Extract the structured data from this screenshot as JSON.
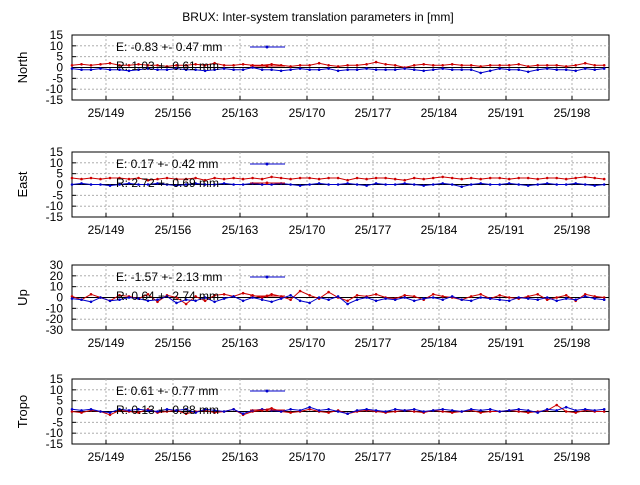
{
  "title": "BRUX: Inter-system translation parameters in [mm]",
  "colors": {
    "E": "#0000cc",
    "R": "#cc0000",
    "grid": "#a0a0a0",
    "axis": "#000000"
  },
  "chart_data": [
    {
      "type": "line",
      "ylabel": "North",
      "ylim": [
        -15,
        15
      ],
      "yticks": [
        -15,
        -10,
        -5,
        0,
        5,
        10,
        15
      ],
      "xticks": [
        "25/149",
        "25/156",
        "25/163",
        "25/170",
        "25/177",
        "25/184",
        "25/191",
        "25/198"
      ],
      "xlim": [
        145,
        201.5
      ],
      "grid": true,
      "legend_position": "top-left",
      "series": [
        {
          "name": "E:  -0.83 +- 0.47 mm",
          "color": "#0000cc",
          "x": [
            145,
            146,
            147,
            148,
            149,
            150,
            151,
            152,
            153,
            154,
            155,
            156,
            157,
            158,
            159,
            160,
            161,
            162,
            163,
            164,
            165,
            166,
            167,
            168,
            169,
            170,
            171,
            172,
            173,
            174,
            175,
            176,
            177,
            178,
            179,
            180,
            181,
            182,
            183,
            184,
            185,
            186,
            187,
            188,
            189,
            190,
            191,
            192,
            193,
            194,
            195,
            196,
            197,
            198,
            199,
            200,
            201
          ],
          "y": [
            -0.5,
            -1,
            -1,
            -0.5,
            -1,
            -1,
            -1.5,
            -1,
            -0.5,
            -1,
            -1,
            -0.5,
            -1,
            -1,
            -1.5,
            -1,
            -0.5,
            -1,
            -1,
            0,
            -1,
            -1,
            -1.5,
            -1,
            -0.5,
            -1,
            -1,
            -0.5,
            -1.5,
            -1,
            -1,
            -0.5,
            -1,
            -1,
            -1,
            -0.5,
            -1,
            -1.5,
            -1,
            -0.5,
            -1,
            -1,
            -1,
            -2.5,
            -1.5,
            -0.5,
            -1,
            -1,
            -2,
            -1,
            -0.5,
            -1,
            -1,
            -1.5,
            -0.5,
            -1,
            -0.5
          ]
        },
        {
          "name": "R:  1.03 +- 0.61 mm",
          "color": "#cc0000",
          "x": [
            145,
            146,
            147,
            148,
            149,
            150,
            151,
            152,
            153,
            154,
            155,
            156,
            157,
            158,
            159,
            160,
            161,
            162,
            163,
            164,
            165,
            166,
            167,
            168,
            169,
            170,
            171,
            172,
            173,
            174,
            175,
            176,
            177,
            178,
            179,
            180,
            181,
            182,
            183,
            184,
            185,
            186,
            187,
            188,
            189,
            190,
            191,
            192,
            193,
            194,
            195,
            196,
            197,
            198,
            199,
            200,
            201
          ],
          "y": [
            1,
            1.5,
            1,
            1.5,
            2,
            1,
            1,
            1.5,
            1,
            1,
            0.5,
            1,
            1,
            1.5,
            1,
            2,
            1,
            1,
            1.5,
            1,
            1,
            1.5,
            1,
            0.5,
            1,
            1,
            2,
            1,
            0.5,
            1,
            1,
            1.5,
            2.5,
            1.5,
            1,
            0,
            1,
            1.5,
            1,
            1,
            1.5,
            1,
            1,
            0.5,
            1,
            1,
            1,
            1.5,
            0.5,
            1,
            1,
            1,
            0.5,
            1,
            2,
            1,
            1
          ]
        }
      ]
    },
    {
      "type": "line",
      "ylabel": "East",
      "ylim": [
        -15,
        15
      ],
      "yticks": [
        -15,
        -10,
        -5,
        0,
        5,
        10,
        15
      ],
      "xticks": [
        "25/149",
        "25/156",
        "25/163",
        "25/170",
        "25/177",
        "25/184",
        "25/191",
        "25/198"
      ],
      "xlim": [
        145,
        201.5
      ],
      "grid": true,
      "legend_position": "top-left",
      "series": [
        {
          "name": "E:  0.17 +- 0.42 mm",
          "color": "#0000cc",
          "x": [
            145,
            146,
            147,
            148,
            149,
            150,
            151,
            152,
            153,
            154,
            155,
            156,
            157,
            158,
            159,
            160,
            161,
            162,
            163,
            164,
            165,
            166,
            167,
            168,
            169,
            170,
            171,
            172,
            173,
            174,
            175,
            176,
            177,
            178,
            179,
            180,
            181,
            182,
            183,
            184,
            185,
            186,
            187,
            188,
            189,
            190,
            191,
            192,
            193,
            194,
            195,
            196,
            197,
            198,
            199,
            200,
            201
          ],
          "y": [
            0,
            0.5,
            0,
            0,
            -0.5,
            0,
            0.5,
            0,
            0,
            0.5,
            0,
            -0.5,
            0,
            0.5,
            0,
            0,
            0.5,
            0,
            0,
            0.5,
            0,
            0,
            0.5,
            0,
            -0.5,
            0,
            0.5,
            0,
            0,
            0.5,
            0,
            -0.5,
            0.5,
            0,
            0,
            0.5,
            0,
            -0.5,
            0,
            0.5,
            0,
            -1,
            0,
            0.5,
            0,
            0,
            0.5,
            0,
            -0.5,
            0,
            0.5,
            0,
            0,
            0.5,
            0,
            -0.5,
            0
          ]
        },
        {
          "name": "R:  2.72 +- 0.69 mm",
          "color": "#cc0000",
          "x": [
            145,
            146,
            147,
            148,
            149,
            150,
            151,
            152,
            153,
            154,
            155,
            156,
            157,
            158,
            159,
            160,
            161,
            162,
            163,
            164,
            165,
            166,
            167,
            168,
            169,
            170,
            171,
            172,
            173,
            174,
            175,
            176,
            177,
            178,
            179,
            180,
            181,
            182,
            183,
            184,
            185,
            186,
            187,
            188,
            189,
            190,
            191,
            192,
            193,
            194,
            195,
            196,
            197,
            198,
            199,
            200,
            201
          ],
          "y": [
            3,
            2.5,
            3,
            2.5,
            3,
            3,
            2.5,
            3,
            2,
            2.5,
            3,
            2.5,
            2.5,
            3,
            2,
            3,
            2.5,
            3,
            2.5,
            3,
            2.5,
            3.5,
            3,
            2.5,
            3,
            3,
            2.5,
            3,
            3,
            2,
            3,
            2.5,
            3,
            3,
            2.5,
            2,
            3,
            2.5,
            3,
            3.5,
            3,
            2.5,
            3,
            2.5,
            3,
            3,
            2.5,
            3,
            3,
            2.5,
            3,
            3,
            2.5,
            3,
            3.5,
            3,
            2.5
          ]
        }
      ]
    },
    {
      "type": "line",
      "ylabel": "Up",
      "ylim": [
        -30,
        30
      ],
      "yticks": [
        -30,
        -20,
        -10,
        0,
        10,
        20,
        30
      ],
      "xticks": [
        "25/149",
        "25/156",
        "25/163",
        "25/170",
        "25/177",
        "25/184",
        "25/191",
        "25/198"
      ],
      "xlim": [
        145,
        201.5
      ],
      "grid": true,
      "legend_position": "top-left",
      "series": [
        {
          "name": "E:  -1.57 +- 2.13 mm",
          "color": "#0000cc",
          "x": [
            145,
            146,
            147,
            148,
            149,
            150,
            151,
            152,
            153,
            154,
            155,
            156,
            157,
            158,
            159,
            160,
            161,
            162,
            163,
            164,
            165,
            166,
            167,
            168,
            169,
            170,
            171,
            172,
            173,
            174,
            175,
            176,
            177,
            178,
            179,
            180,
            181,
            182,
            183,
            184,
            185,
            186,
            187,
            188,
            189,
            190,
            191,
            192,
            193,
            194,
            195,
            196,
            197,
            198,
            199,
            200,
            201
          ],
          "y": [
            -1,
            -2,
            -4,
            0,
            -3,
            -2,
            0,
            -1,
            -3,
            -2,
            1,
            -5,
            -2,
            -3,
            0,
            -4,
            -1,
            1,
            -3,
            0,
            -2,
            -4,
            -1,
            2,
            -3,
            -5,
            0,
            -2,
            1,
            -6,
            -2,
            0,
            -3,
            -1,
            -2,
            0,
            -3,
            -1,
            0,
            -2,
            1,
            -2,
            -3,
            0,
            -1,
            -2,
            -3,
            0,
            -1,
            -2,
            0,
            -3,
            -1,
            -2,
            1,
            -1,
            -2
          ]
        },
        {
          "name": "R:  0.64 +- 2.74 mm",
          "color": "#cc0000",
          "x": [
            145,
            146,
            147,
            148,
            149,
            150,
            151,
            152,
            153,
            154,
            155,
            156,
            157,
            158,
            159,
            160,
            161,
            162,
            163,
            164,
            165,
            166,
            167,
            168,
            169,
            170,
            171,
            172,
            173,
            174,
            175,
            176,
            177,
            178,
            179,
            180,
            181,
            182,
            183,
            184,
            185,
            186,
            187,
            188,
            189,
            190,
            191,
            192,
            193,
            194,
            195,
            196,
            197,
            198,
            199,
            200,
            201
          ],
          "y": [
            1,
            -2,
            3,
            0,
            -3,
            2,
            1,
            -1,
            3,
            -4,
            2,
            0,
            -6,
            1,
            -3,
            2,
            3,
            1,
            4,
            2,
            0,
            3,
            1,
            -2,
            6,
            2,
            -1,
            5,
            0,
            -3,
            2,
            1,
            3,
            0,
            -1,
            2,
            1,
            -2,
            3,
            1,
            0,
            -2,
            1,
            3,
            -1,
            2,
            0,
            -1,
            1,
            3,
            -2,
            0,
            2,
            -3,
            3,
            1,
            0
          ]
        }
      ]
    },
    {
      "type": "line",
      "ylabel": "Tropo",
      "ylim": [
        -15,
        15
      ],
      "yticks": [
        -15,
        -10,
        -5,
        0,
        5,
        10,
        15
      ],
      "xticks": [
        "25/149",
        "25/156",
        "25/163",
        "25/170",
        "25/177",
        "25/184",
        "25/191",
        "25/198"
      ],
      "xlim": [
        145,
        201.5
      ],
      "grid": true,
      "legend_position": "top-left",
      "series": [
        {
          "name": "E:  0.61 +- 0.77 mm",
          "color": "#0000cc",
          "x": [
            145,
            146,
            147,
            148,
            149,
            150,
            151,
            152,
            153,
            154,
            155,
            156,
            157,
            158,
            159,
            160,
            161,
            162,
            163,
            164,
            165,
            166,
            167,
            168,
            169,
            170,
            171,
            172,
            173,
            174,
            175,
            176,
            177,
            178,
            179,
            180,
            181,
            182,
            183,
            184,
            185,
            186,
            187,
            188,
            189,
            190,
            191,
            192,
            193,
            194,
            195,
            196,
            197,
            198,
            199,
            200,
            201
          ],
          "y": [
            1,
            0.5,
            1,
            0,
            -0.5,
            1,
            0.5,
            1,
            0.5,
            0,
            1,
            0.5,
            1,
            -0.5,
            1,
            0.5,
            0,
            1,
            -1,
            0.5,
            1,
            0.5,
            0,
            1,
            0.5,
            2,
            0.5,
            1,
            0,
            -1,
            0.5,
            1,
            0.5,
            0,
            1,
            0.5,
            1,
            0,
            0.5,
            1,
            0.5,
            0,
            1,
            0.5,
            1,
            0,
            0.5,
            1,
            0.5,
            -0.5,
            1,
            0.5,
            2,
            0.5,
            1,
            0.5,
            1
          ]
        },
        {
          "name": "R:  0.13 +- 0.88 mm",
          "color": "#cc0000",
          "x": [
            145,
            146,
            147,
            148,
            149,
            150,
            151,
            152,
            153,
            154,
            155,
            156,
            157,
            158,
            159,
            160,
            161,
            162,
            163,
            164,
            165,
            166,
            167,
            168,
            169,
            170,
            171,
            172,
            173,
            174,
            175,
            176,
            177,
            178,
            179,
            180,
            181,
            182,
            183,
            184,
            185,
            186,
            187,
            188,
            189,
            190,
            191,
            192,
            193,
            194,
            195,
            196,
            197,
            198,
            199,
            200,
            201
          ],
          "y": [
            0,
            -0.5,
            0.5,
            0,
            -1.5,
            0.5,
            0,
            -0.5,
            1,
            -0.5,
            0,
            0.5,
            -1,
            0,
            0.5,
            -0.5,
            0,
            1,
            -1.5,
            0,
            0.5,
            1.5,
            0,
            -0.5,
            0,
            1,
            0,
            -0.5,
            0.5,
            -1,
            0,
            0.5,
            0,
            -0.5,
            0,
            0.5,
            0,
            -0.5,
            0.5,
            0,
            -0.5,
            0,
            0.5,
            -0.5,
            0,
            0,
            0.5,
            0,
            -0.5,
            0,
            0.5,
            3,
            0,
            -0.5,
            0.5,
            0,
            0
          ]
        }
      ]
    }
  ]
}
